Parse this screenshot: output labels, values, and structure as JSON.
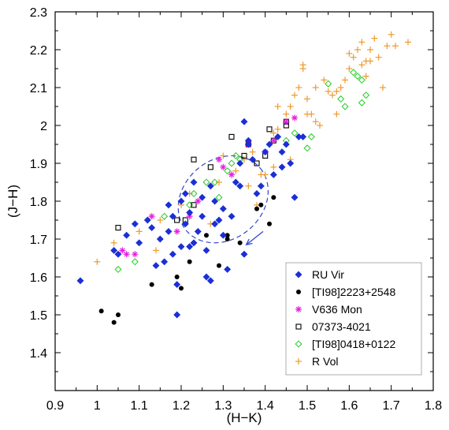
{
  "chart_data": {
    "type": "scatter",
    "title": "",
    "xlabel": "(H−K)",
    "ylabel": "(J−H)",
    "xlim": [
      0.9,
      1.8
    ],
    "ylim": [
      1.3,
      2.3
    ],
    "xticks": [
      "0.9",
      "1",
      "1.1",
      "1.2",
      "1.3",
      "1.4",
      "1.5",
      "1.6",
      "1.7",
      "1.8"
    ],
    "yticks": [
      "1.4",
      "1.5",
      "1.6",
      "1.7",
      "1.8",
      "1.9",
      "2",
      "2.1",
      "2.2",
      "2.3"
    ],
    "legend_position": "bottom-right",
    "annotations": {
      "ellipse": {
        "center": [
          1.3,
          1.805
        ],
        "rx": 0.115,
        "ry": 0.105,
        "rotation_deg": -40,
        "style": "dashed",
        "color": "#3344cc"
      },
      "arrow": {
        "from": [
          1.395,
          1.72
        ],
        "to": [
          1.355,
          1.685
        ],
        "color": "#3344cc"
      }
    },
    "series": [
      {
        "name": "RU Vir",
        "marker": "diamond",
        "color": "#1a2fd6",
        "points": [
          [
            0.96,
            1.59
          ],
          [
            1.04,
            1.67
          ],
          [
            1.05,
            1.66
          ],
          [
            1.07,
            1.71
          ],
          [
            1.09,
            1.74
          ],
          [
            1.1,
            1.69
          ],
          [
            1.12,
            1.75
          ],
          [
            1.13,
            1.73
          ],
          [
            1.14,
            1.63
          ],
          [
            1.15,
            1.7
          ],
          [
            1.16,
            1.64
          ],
          [
            1.17,
            1.72
          ],
          [
            1.17,
            1.79
          ],
          [
            1.18,
            1.76
          ],
          [
            1.18,
            1.66
          ],
          [
            1.19,
            1.58
          ],
          [
            1.19,
            1.5
          ],
          [
            1.2,
            1.8
          ],
          [
            1.2,
            1.68
          ],
          [
            1.21,
            1.74
          ],
          [
            1.21,
            1.82
          ],
          [
            1.22,
            1.68
          ],
          [
            1.22,
            1.77
          ],
          [
            1.23,
            1.85
          ],
          [
            1.23,
            1.69
          ],
          [
            1.24,
            1.72
          ],
          [
            1.25,
            1.76
          ],
          [
            1.25,
            1.81
          ],
          [
            1.26,
            1.67
          ],
          [
            1.26,
            1.6
          ],
          [
            1.27,
            1.59
          ],
          [
            1.27,
            1.84
          ],
          [
            1.28,
            1.8
          ],
          [
            1.28,
            1.74
          ],
          [
            1.29,
            1.75
          ],
          [
            1.3,
            1.78
          ],
          [
            1.3,
            1.71
          ],
          [
            1.31,
            1.62
          ],
          [
            1.32,
            1.76
          ],
          [
            1.33,
            1.85
          ],
          [
            1.34,
            1.9
          ],
          [
            1.34,
            1.84
          ],
          [
            1.35,
            2.01
          ],
          [
            1.35,
            1.66
          ],
          [
            1.36,
            1.96
          ],
          [
            1.37,
            1.91
          ],
          [
            1.38,
            1.82
          ],
          [
            1.39,
            1.84
          ],
          [
            1.4,
            1.93
          ],
          [
            1.41,
            1.95
          ],
          [
            1.42,
            1.87
          ],
          [
            1.43,
            1.97
          ],
          [
            1.44,
            1.89
          ],
          [
            1.45,
            1.95
          ],
          [
            1.46,
            1.9
          ],
          [
            1.48,
            1.97
          ],
          [
            1.49,
            1.97
          ],
          [
            1.47,
            1.81
          ],
          [
            1.44,
            1.93
          ],
          [
            1.36,
            1.95
          ]
        ]
      },
      {
        "name": "[TI98]2223+2548",
        "marker": "circle",
        "color": "#000000",
        "points": [
          [
            1.01,
            1.51
          ],
          [
            1.04,
            1.48
          ],
          [
            1.05,
            1.5
          ],
          [
            1.13,
            1.58
          ],
          [
            1.19,
            1.6
          ],
          [
            1.2,
            1.57
          ],
          [
            1.22,
            1.64
          ],
          [
            1.26,
            1.71
          ],
          [
            1.29,
            1.63
          ],
          [
            1.31,
            1.7
          ],
          [
            1.31,
            1.71
          ],
          [
            1.34,
            1.69
          ],
          [
            1.38,
            1.78
          ],
          [
            1.39,
            1.79
          ],
          [
            1.41,
            1.74
          ],
          [
            1.42,
            1.81
          ]
        ]
      },
      {
        "name": "V636 Mon",
        "marker": "star",
        "color": "#e81ee0",
        "points": [
          [
            1.06,
            1.67
          ],
          [
            1.07,
            1.66
          ],
          [
            1.09,
            1.66
          ],
          [
            1.13,
            1.76
          ],
          [
            1.19,
            1.72
          ],
          [
            1.22,
            1.76
          ],
          [
            1.24,
            1.8
          ],
          [
            1.29,
            1.91
          ],
          [
            1.3,
            1.89
          ],
          [
            1.32,
            1.87
          ],
          [
            1.36,
            1.95
          ],
          [
            1.4,
            1.93
          ],
          [
            1.42,
            1.96
          ],
          [
            1.45,
            2.01
          ],
          [
            1.47,
            2.02
          ]
        ]
      },
      {
        "name": "07373-4021",
        "marker": "square",
        "color": "#000000",
        "points": [
          [
            1.05,
            1.73
          ],
          [
            1.19,
            1.75
          ],
          [
            1.21,
            1.75
          ],
          [
            1.23,
            1.79
          ],
          [
            1.23,
            1.91
          ],
          [
            1.27,
            1.89
          ],
          [
            1.32,
            1.97
          ],
          [
            1.35,
            1.92
          ],
          [
            1.38,
            1.9
          ],
          [
            1.4,
            1.92
          ],
          [
            1.41,
            1.99
          ],
          [
            1.42,
            1.96
          ],
          [
            1.45,
            2.0
          ],
          [
            1.45,
            2.01
          ],
          [
            1.36,
            1.95
          ]
        ]
      },
      {
        "name": "[TI98]0418+0122",
        "marker": "diamond-open",
        "color": "#22cc22",
        "points": [
          [
            1.05,
            1.62
          ],
          [
            1.09,
            1.64
          ],
          [
            1.16,
            1.76
          ],
          [
            1.22,
            1.79
          ],
          [
            1.23,
            1.82
          ],
          [
            1.26,
            1.85
          ],
          [
            1.28,
            1.85
          ],
          [
            1.29,
            1.81
          ],
          [
            1.31,
            1.88
          ],
          [
            1.32,
            1.9
          ],
          [
            1.33,
            1.92
          ],
          [
            1.34,
            1.91
          ],
          [
            1.45,
            1.96
          ],
          [
            1.47,
            1.98
          ],
          [
            1.51,
            1.97
          ],
          [
            1.5,
            1.94
          ],
          [
            1.55,
            2.11
          ],
          [
            1.58,
            2.07
          ],
          [
            1.59,
            2.05
          ],
          [
            1.61,
            2.14
          ],
          [
            1.62,
            2.13
          ],
          [
            1.63,
            2.12
          ],
          [
            1.63,
            2.06
          ],
          [
            1.64,
            2.08
          ]
        ]
      },
      {
        "name": "R Vol",
        "marker": "plus",
        "color": "#ee9a2e",
        "points": [
          [
            1.0,
            1.64
          ],
          [
            1.04,
            1.69
          ],
          [
            1.1,
            1.72
          ],
          [
            1.14,
            1.67
          ],
          [
            1.2,
            1.79
          ],
          [
            1.22,
            1.82
          ],
          [
            1.24,
            1.8
          ],
          [
            1.27,
            1.74
          ],
          [
            1.29,
            1.85
          ],
          [
            1.3,
            1.92
          ],
          [
            1.32,
            1.87
          ],
          [
            1.33,
            1.88
          ],
          [
            1.36,
            1.84
          ],
          [
            1.38,
            1.79
          ],
          [
            1.39,
            1.87
          ],
          [
            1.4,
            1.87
          ],
          [
            1.42,
            1.89
          ],
          [
            1.43,
            1.99
          ],
          [
            1.43,
            2.05
          ],
          [
            1.45,
            2.03
          ],
          [
            1.46,
            1.91
          ],
          [
            1.46,
            2.05
          ],
          [
            1.47,
            2.08
          ],
          [
            1.48,
            2.1
          ],
          [
            1.49,
            2.16
          ],
          [
            1.49,
            2.15
          ],
          [
            1.5,
            2.07
          ],
          [
            1.5,
            2.03
          ],
          [
            1.51,
            2.03
          ],
          [
            1.52,
            2.01
          ],
          [
            1.52,
            2.1
          ],
          [
            1.53,
            2.0
          ],
          [
            1.54,
            2.12
          ],
          [
            1.55,
            2.09
          ],
          [
            1.56,
            2.08
          ],
          [
            1.57,
            2.03
          ],
          [
            1.57,
            2.09
          ],
          [
            1.58,
            2.1
          ],
          [
            1.59,
            2.12
          ],
          [
            1.6,
            2.15
          ],
          [
            1.6,
            2.19
          ],
          [
            1.61,
            2.18
          ],
          [
            1.62,
            2.2
          ],
          [
            1.63,
            2.16
          ],
          [
            1.63,
            2.22
          ],
          [
            1.64,
            2.17
          ],
          [
            1.64,
            2.13
          ],
          [
            1.65,
            2.2
          ],
          [
            1.65,
            2.17
          ],
          [
            1.66,
            2.23
          ],
          [
            1.67,
            2.18
          ],
          [
            1.68,
            2.1
          ],
          [
            1.7,
            2.24
          ],
          [
            1.71,
            2.21
          ],
          [
            1.74,
            2.22
          ],
          [
            1.69,
            2.21
          ],
          [
            1.37,
            1.93
          ],
          [
            1.35,
            1.91
          ],
          [
            1.15,
            1.75
          ],
          [
            1.42,
            1.98
          ]
        ]
      }
    ]
  }
}
